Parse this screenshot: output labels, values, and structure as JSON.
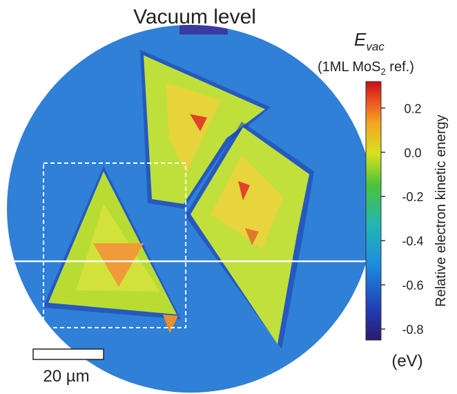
{
  "title": "Vacuum level",
  "colorbar": {
    "symbol": "E",
    "subscript": "vac",
    "reference": [
      "(1ML MoS",
      "2",
      " ref.)"
    ],
    "label": "Relative electron kinetic energy",
    "unit": "(eV)",
    "lim": [
      -0.85,
      0.32
    ],
    "ticks": [
      0.2,
      {
        "value": 0,
        "label": "0.0"
      },
      -0.2,
      -0.4,
      -0.6,
      -0.8
    ]
  },
  "scale_bar": "20 µm"
}
